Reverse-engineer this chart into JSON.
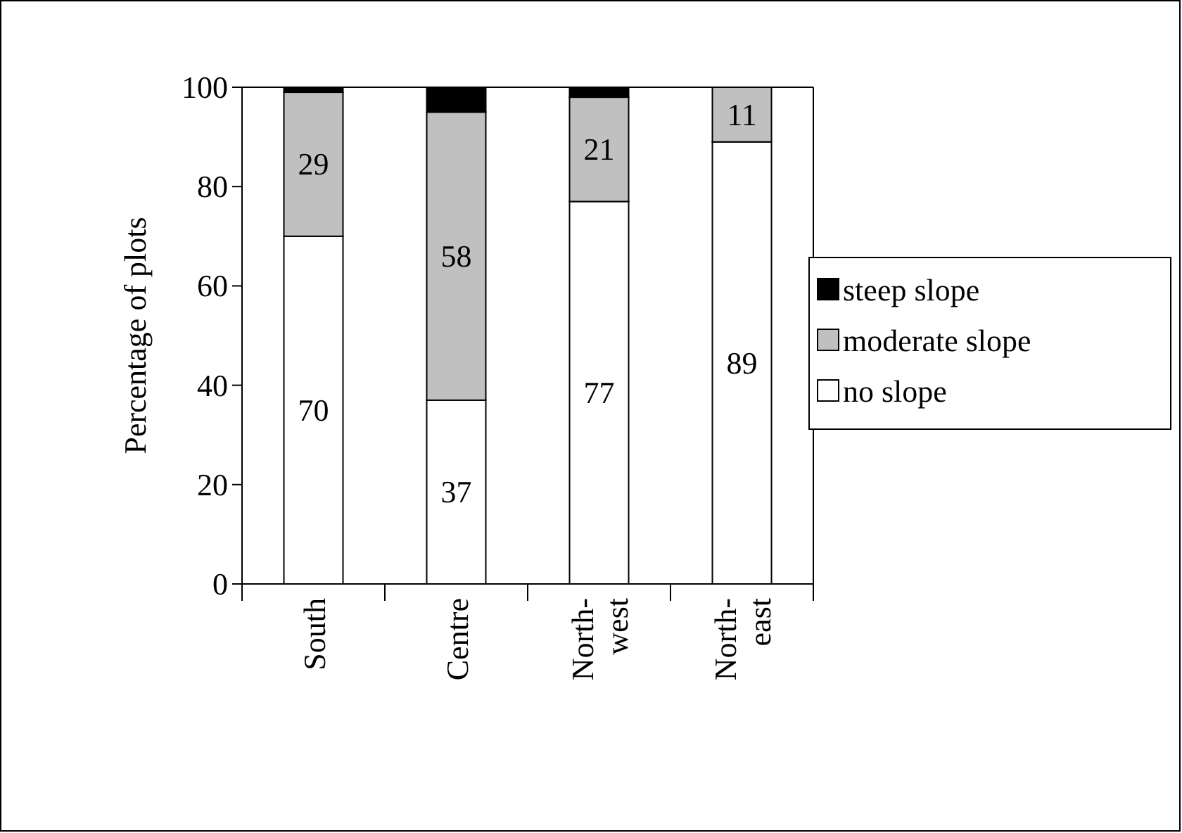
{
  "chart_data": {
    "type": "bar",
    "stacked": true,
    "ylabel": "Percentage of plots",
    "categories": [
      "South",
      "Centre",
      "North-\nwest",
      "North-\neast"
    ],
    "series": [
      {
        "name": "no slope",
        "color": "#ffffff",
        "values": [
          70,
          37,
          77,
          89
        ],
        "value_labels": [
          "70",
          "37",
          "77",
          "89"
        ]
      },
      {
        "name": "moderate slope",
        "color": "#c0c0c0",
        "values": [
          29,
          58,
          21,
          11
        ],
        "value_labels": [
          "29",
          "58",
          "21",
          "11"
        ]
      },
      {
        "name": "steep slope",
        "color": "#000000",
        "values": [
          1,
          5,
          2,
          0
        ],
        "value_labels": [
          null,
          null,
          null,
          null
        ]
      }
    ],
    "ylim": [
      0,
      100
    ],
    "yticks": [
      0,
      20,
      40,
      60,
      80,
      100
    ],
    "legend": "right"
  }
}
